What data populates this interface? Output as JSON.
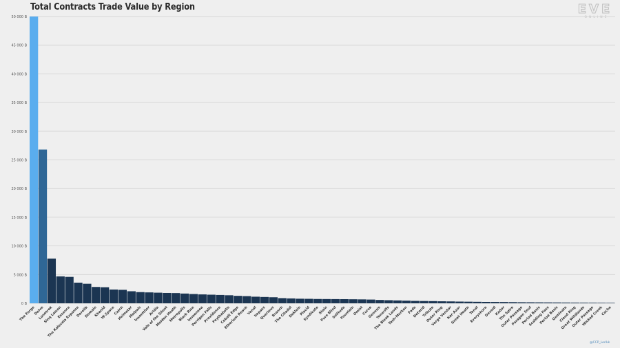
{
  "brand": {
    "logo_text": "EVE",
    "logo_sub": "ONLINE"
  },
  "credit": "@CCP_Lerikk",
  "colors": {
    "first": "#5aadee",
    "second": "#2f6796",
    "rest": "#1b3552",
    "grid": "#cfcfcf",
    "background": "#efefef"
  },
  "chart_data": {
    "type": "bar",
    "title": "Total Contracts Trade Value by Region",
    "xlabel": "",
    "ylabel": "",
    "ylim": [
      0,
      50000
    ],
    "yticks": [
      0,
      5000,
      10000,
      15000,
      20000,
      25000,
      30000,
      35000,
      40000,
      45000,
      50000
    ],
    "ytick_labels": [
      "0 B",
      "5 000 B",
      "10 000 B",
      "15 000 B",
      "20 000 B",
      "25 000 B",
      "30 000 B",
      "35 000 B",
      "40 000 B",
      "45 000 B",
      "50 000 B"
    ],
    "grid": true,
    "categories": [
      "The Forge",
      "Delve",
      "Lonetrek",
      "Sinq Laison",
      "Essence",
      "The Kalevala Expanse",
      "Derelik",
      "Domain",
      "Khanid",
      "W-Space",
      "Catch",
      "Heimatar",
      "Malpais",
      "Insmother",
      "Aridia",
      "Vale of the Silent",
      "Molden Heath",
      "Metropolis",
      "Black Rise",
      "Immensea",
      "Perrigen Falls",
      "Providence",
      "Feythabolis",
      "Cobalt Edge",
      "Etherium Reach",
      "Venal",
      "Impass",
      "Querious",
      "Branch",
      "The Citadel",
      "Deklein",
      "Placid",
      "Syndicate",
      "Stain",
      "Pure Blind",
      "Solitude",
      "Fountain",
      "Omist",
      "Curse",
      "Genesis",
      "Tenerifis",
      "The Bleak Lands",
      "Tash-Murkon",
      "Fade",
      "Detorid",
      "Tribute",
      "Outer Ring",
      "Verge Vendor",
      "Kor-Azor",
      "Great Heath",
      "Tenal",
      "Everyshore",
      "Devoid",
      "Kador",
      "The Spire",
      "Outer Passage",
      "Paragon Soul",
      "Period Basis",
      "Scalding Pass",
      "Period Basis",
      "Geminate",
      "Cloud Ring",
      "Great Wildlands",
      "Outer Passage",
      "Wicked Creek",
      "Cache"
    ],
    "values": [
      50300,
      26800,
      7800,
      4700,
      4600,
      3600,
      3400,
      2850,
      2800,
      2400,
      2350,
      2100,
      1950,
      1900,
      1850,
      1800,
      1780,
      1700,
      1620,
      1550,
      1500,
      1450,
      1400,
      1300,
      1250,
      1150,
      1100,
      1050,
      900,
      850,
      800,
      780,
      750,
      740,
      730,
      720,
      700,
      680,
      650,
      580,
      540,
      500,
      460,
      420,
      400,
      380,
      350,
      330,
      300,
      280,
      260,
      240,
      230,
      220,
      200,
      180,
      170,
      160,
      150,
      140,
      130,
      120,
      110,
      100,
      90,
      80
    ]
  }
}
